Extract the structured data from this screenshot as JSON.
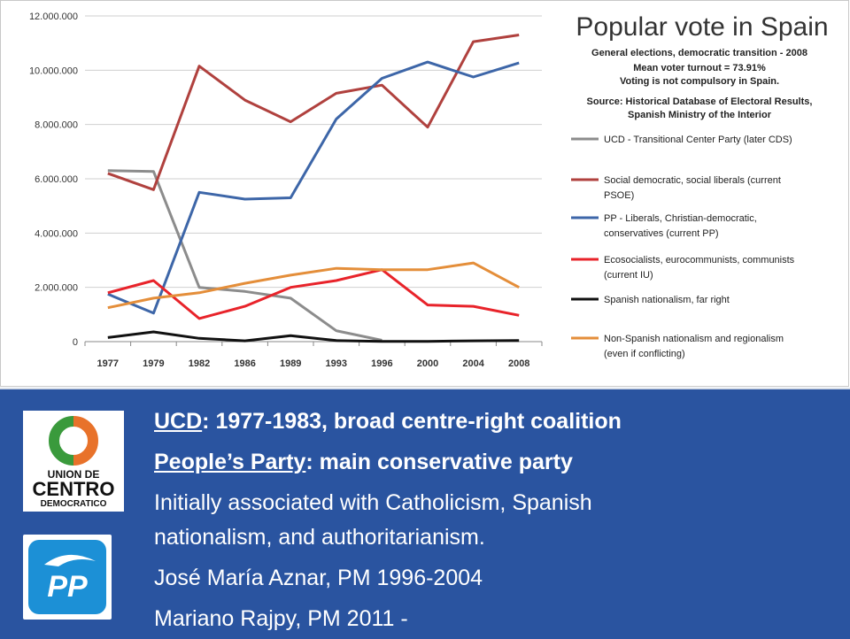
{
  "chart_data": {
    "type": "line",
    "title": "Popular vote in Spain",
    "subtitle_lines": [
      "General elections, democratic transition - 2008",
      "Mean voter turnout = 73.91%",
      "Voting is not compulsory in Spain.",
      "Source: Historical Database of Electoral Results,",
      "Spanish Ministry of the Interior"
    ],
    "categories": [
      "1977",
      "1979",
      "1982",
      "1986",
      "1989",
      "1993",
      "1996",
      "2000",
      "2004",
      "2008"
    ],
    "ylim": [
      0,
      12000000
    ],
    "yticks": [
      0,
      2000000,
      4000000,
      6000000,
      8000000,
      10000000,
      12000000
    ],
    "ytick_labels": [
      "0",
      "2.000.000",
      "4.000.000",
      "6.000.000",
      "8.000.000",
      "10.000.000",
      "12.000.000"
    ],
    "grid": true,
    "legend_position": "right",
    "series": [
      {
        "name": "UCD - Transitional  Center Party (later CDS)",
        "color": "#8c8c8c",
        "values": [
          6300000,
          6270000,
          2000000,
          1850000,
          1600000,
          400000,
          50000,
          null,
          null,
          null
        ]
      },
      {
        "name": "Social democratic, social liberals (current PSOE)",
        "color": "#b0413e",
        "values": [
          6200000,
          5600000,
          10150000,
          8900000,
          8100000,
          9150000,
          9450000,
          7900000,
          11050000,
          11300000
        ]
      },
      {
        "name": "PP - Liberals, Christian-democratic, conservatives (current PP)",
        "color": "#3d66a8",
        "values": [
          1750000,
          1050000,
          5500000,
          5250000,
          5300000,
          8200000,
          9700000,
          10300000,
          9750000,
          10270000
        ]
      },
      {
        "name": "Ecosocialists, eurocommunists, communists (current IU)",
        "color": "#e8232a",
        "values": [
          1800000,
          2250000,
          850000,
          1300000,
          2000000,
          2250000,
          2650000,
          1350000,
          1300000,
          970000
        ]
      },
      {
        "name": "Spanish nationalism, far right",
        "color": "#111111",
        "values": [
          150000,
          360000,
          120000,
          30000,
          220000,
          40000,
          10000,
          10000,
          30000,
          40000
        ]
      },
      {
        "name": "Non-Spanish nationalism and regionalism (even if conflicting)",
        "color": "#e48e3a",
        "values": [
          1250000,
          1600000,
          1800000,
          2150000,
          2450000,
          2700000,
          2650000,
          2650000,
          2900000,
          2000000
        ]
      }
    ],
    "legend_lines": [
      [
        "UCD - Transitional  Center Party (later CDS)"
      ],
      [
        "Social democratic, social liberals (current",
        "PSOE)"
      ],
      [
        "PP - Liberals, Christian-democratic,",
        "conservatives (current PP)"
      ],
      [
        "Ecosocialists, eurocommunists, communists",
        "(current IU)"
      ],
      [
        "Spanish nationalism, far right"
      ],
      [
        "Non-Spanish nationalism and regionalism",
        "(even if conflicting)"
      ]
    ]
  },
  "bullets": {
    "b1_link": "UCD",
    "b1_text": ": 1977-1983, broad centre-right coalition",
    "b2_link": "People’s Party",
    "b2_text": ": main conservative party",
    "b3_line1": "Initially associated with Catholicism, Spanish",
    "b3_line2": "nationalism, and authoritarianism.",
    "b4": "José María Aznar, PM 1996-2004",
    "b5": "Mariano  Rajpy, PM 2011 -"
  },
  "logos": {
    "ucd_text": [
      "UNION DE",
      "CENTRO",
      "DEMOCRATICO"
    ],
    "pp_text": "PP"
  },
  "colors": {
    "background_blue": "#2a54a0",
    "ucd_orange": "#e8722a",
    "ucd_green": "#3a9a3c",
    "pp_blue": "#1c90d6"
  }
}
